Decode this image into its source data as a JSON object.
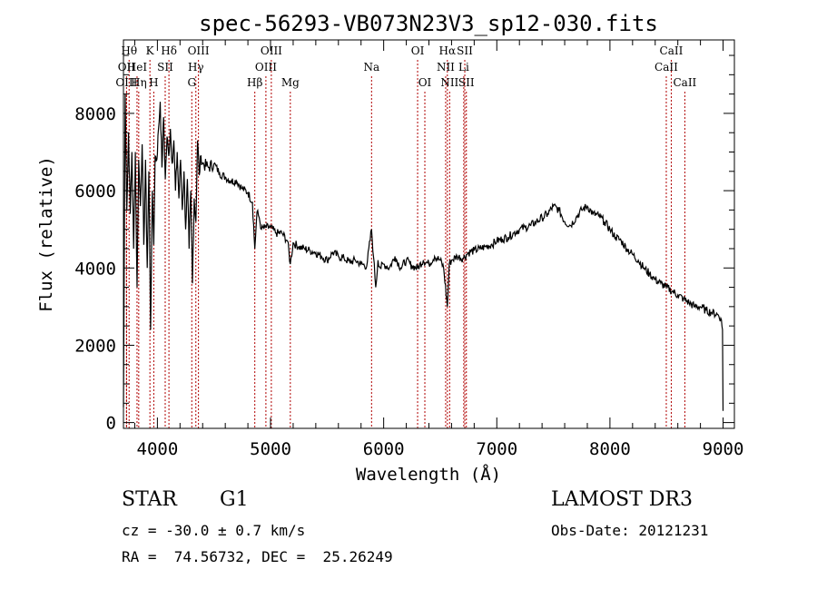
{
  "chart_data": {
    "type": "line",
    "title": "spec-56293-VB073N23V3_sp12-030.fits",
    "xlabel": "Wavelength (Å)",
    "ylabel": "Flux (relative)",
    "xlim": [
      3700,
      9100
    ],
    "ylim": [
      -150,
      9900
    ],
    "xticks": [
      4000,
      5000,
      6000,
      7000,
      8000,
      9000
    ],
    "yticks": [
      0,
      2000,
      4000,
      6000,
      8000
    ],
    "xtick_labels": [
      "4000",
      "5000",
      "6000",
      "7000",
      "8000",
      "9000"
    ],
    "ytick_labels": [
      "0",
      "2000",
      "4000",
      "6000",
      "8000"
    ],
    "series": [
      {
        "name": "flux",
        "x": [
          3700,
          3715,
          3730,
          3745,
          3760,
          3775,
          3790,
          3805,
          3820,
          3835,
          3850,
          3865,
          3880,
          3895,
          3910,
          3925,
          3940,
          3955,
          3968,
          3980,
          3995,
          4010,
          4025,
          4040,
          4055,
          4070,
          4085,
          4100,
          4115,
          4130,
          4145,
          4160,
          4175,
          4190,
          4205,
          4220,
          4235,
          4250,
          4265,
          4280,
          4295,
          4310,
          4325,
          4340,
          4355,
          4370,
          4385,
          4400,
          4450,
          4500,
          4550,
          4600,
          4650,
          4700,
          4750,
          4800,
          4840,
          4861,
          4880,
          4900,
          4920,
          4950,
          5000,
          5050,
          5100,
          5150,
          5175,
          5200,
          5250,
          5300,
          5350,
          5400,
          5450,
          5500,
          5550,
          5600,
          5650,
          5700,
          5750,
          5800,
          5850,
          5893,
          5910,
          5930,
          5950,
          5970,
          6000,
          6050,
          6100,
          6150,
          6200,
          6250,
          6300,
          6350,
          6400,
          6450,
          6500,
          6530,
          6563,
          6580,
          6600,
          6650,
          6700,
          6750,
          6800,
          6850,
          6900,
          6950,
          7000,
          7050,
          7100,
          7150,
          7200,
          7250,
          7300,
          7350,
          7400,
          7450,
          7500,
          7550,
          7600,
          7650,
          7700,
          7750,
          7800,
          7850,
          7900,
          7950,
          8000,
          8050,
          8100,
          8150,
          8200,
          8250,
          8300,
          8350,
          8400,
          8450,
          8500,
          8550,
          8600,
          8650,
          8700,
          8750,
          8800,
          8850,
          8900,
          8950,
          8980,
          8995,
          9000
        ],
        "y": [
          400,
          8500,
          5500,
          7500,
          5400,
          7000,
          4500,
          7000,
          3500,
          6800,
          5600,
          7200,
          4600,
          6800,
          4000,
          6500,
          2400,
          6000,
          4600,
          6900,
          6800,
          7600,
          8300,
          6600,
          7900,
          6300,
          7400,
          6900,
          7600,
          6700,
          7300,
          6000,
          7000,
          5800,
          6800,
          5500,
          6500,
          5000,
          6300,
          4500,
          6000,
          3600,
          5800,
          5200,
          7300,
          6400,
          6900,
          6700,
          6600,
          6700,
          6450,
          6350,
          6250,
          6250,
          6050,
          5950,
          5700,
          4500,
          5450,
          5300,
          5000,
          5050,
          5050,
          4900,
          4900,
          4700,
          4100,
          4650,
          4550,
          4500,
          4450,
          4400,
          4300,
          4200,
          4400,
          4300,
          4250,
          4150,
          4200,
          4100,
          4050,
          5000,
          4300,
          3500,
          4200,
          4000,
          4100,
          4000,
          4300,
          4000,
          4200,
          4050,
          4000,
          4200,
          4100,
          4300,
          4200,
          4000,
          3000,
          4100,
          4200,
          4300,
          4250,
          4400,
          4450,
          4500,
          4550,
          4600,
          4700,
          4750,
          4800,
          4900,
          5000,
          5050,
          5100,
          5200,
          5300,
          5400,
          5600,
          5500,
          5200,
          5100,
          5300,
          5500,
          5600,
          5400,
          5350,
          5200,
          5000,
          4800,
          4700,
          4500,
          4350,
          4200,
          4000,
          3850,
          3700,
          3600,
          3500,
          3400,
          3300,
          3200,
          3100,
          3000,
          3000,
          2900,
          2850,
          2800,
          2700,
          2400,
          300
        ]
      }
    ],
    "spectral_lines": [
      {
        "label": "Hθ",
        "x": 3750,
        "row": 0
      },
      {
        "label": "OII",
        "x": 3727,
        "row": 1
      },
      {
        "label": "OIII",
        "x": 3727,
        "row": 2
      },
      {
        "label": "Hη",
        "x": 3835,
        "row": 2
      },
      {
        "label": "HeI",
        "x": 3820,
        "row": 1
      },
      {
        "label": "K",
        "x": 3934,
        "row": 0
      },
      {
        "label": "H",
        "x": 3968,
        "row": 2
      },
      {
        "label": "SII",
        "x": 4069,
        "row": 1
      },
      {
        "label": "Hδ",
        "x": 4102,
        "row": 0
      },
      {
        "label": "OIII",
        "x": 4363,
        "row": 0
      },
      {
        "label": "Hγ",
        "x": 4340,
        "row": 1
      },
      {
        "label": "G",
        "x": 4304,
        "row": 2
      },
      {
        "label": "Hβ",
        "x": 4861,
        "row": 2
      },
      {
        "label": "OIII",
        "x": 5007,
        "row": 0
      },
      {
        "label": "OIII",
        "x": 4959,
        "row": 1
      },
      {
        "label": "Mg",
        "x": 5175,
        "row": 2
      },
      {
        "label": "Na",
        "x": 5893,
        "row": 1
      },
      {
        "label": "OI",
        "x": 6300,
        "row": 0
      },
      {
        "label": "OI",
        "x": 6364,
        "row": 2
      },
      {
        "label": "Hα",
        "x": 6563,
        "row": 0
      },
      {
        "label": "NII",
        "x": 6548,
        "row": 1
      },
      {
        "label": "NII",
        "x": 6583,
        "row": 2
      },
      {
        "label": "SII",
        "x": 6717,
        "row": 0
      },
      {
        "label": "Li",
        "x": 6708,
        "row": 1
      },
      {
        "label": "SII",
        "x": 6731,
        "row": 2
      },
      {
        "label": "CaII",
        "x": 8542,
        "row": 0
      },
      {
        "label": "CaII",
        "x": 8498,
        "row": 1
      },
      {
        "label": "CaII",
        "x": 8662,
        "row": 2
      }
    ]
  },
  "info": {
    "object_class": "STAR",
    "subclass": "G1",
    "survey": "LAMOST DR3",
    "redshift": "cz = -30.0 ± 0.7 km/s",
    "obs_date": "Obs-Date: 20121231",
    "coords": "RA =  74.56732, DEC =  25.26249"
  },
  "colors": {
    "line_marker": "#b00000",
    "spectrum": "#000000"
  }
}
